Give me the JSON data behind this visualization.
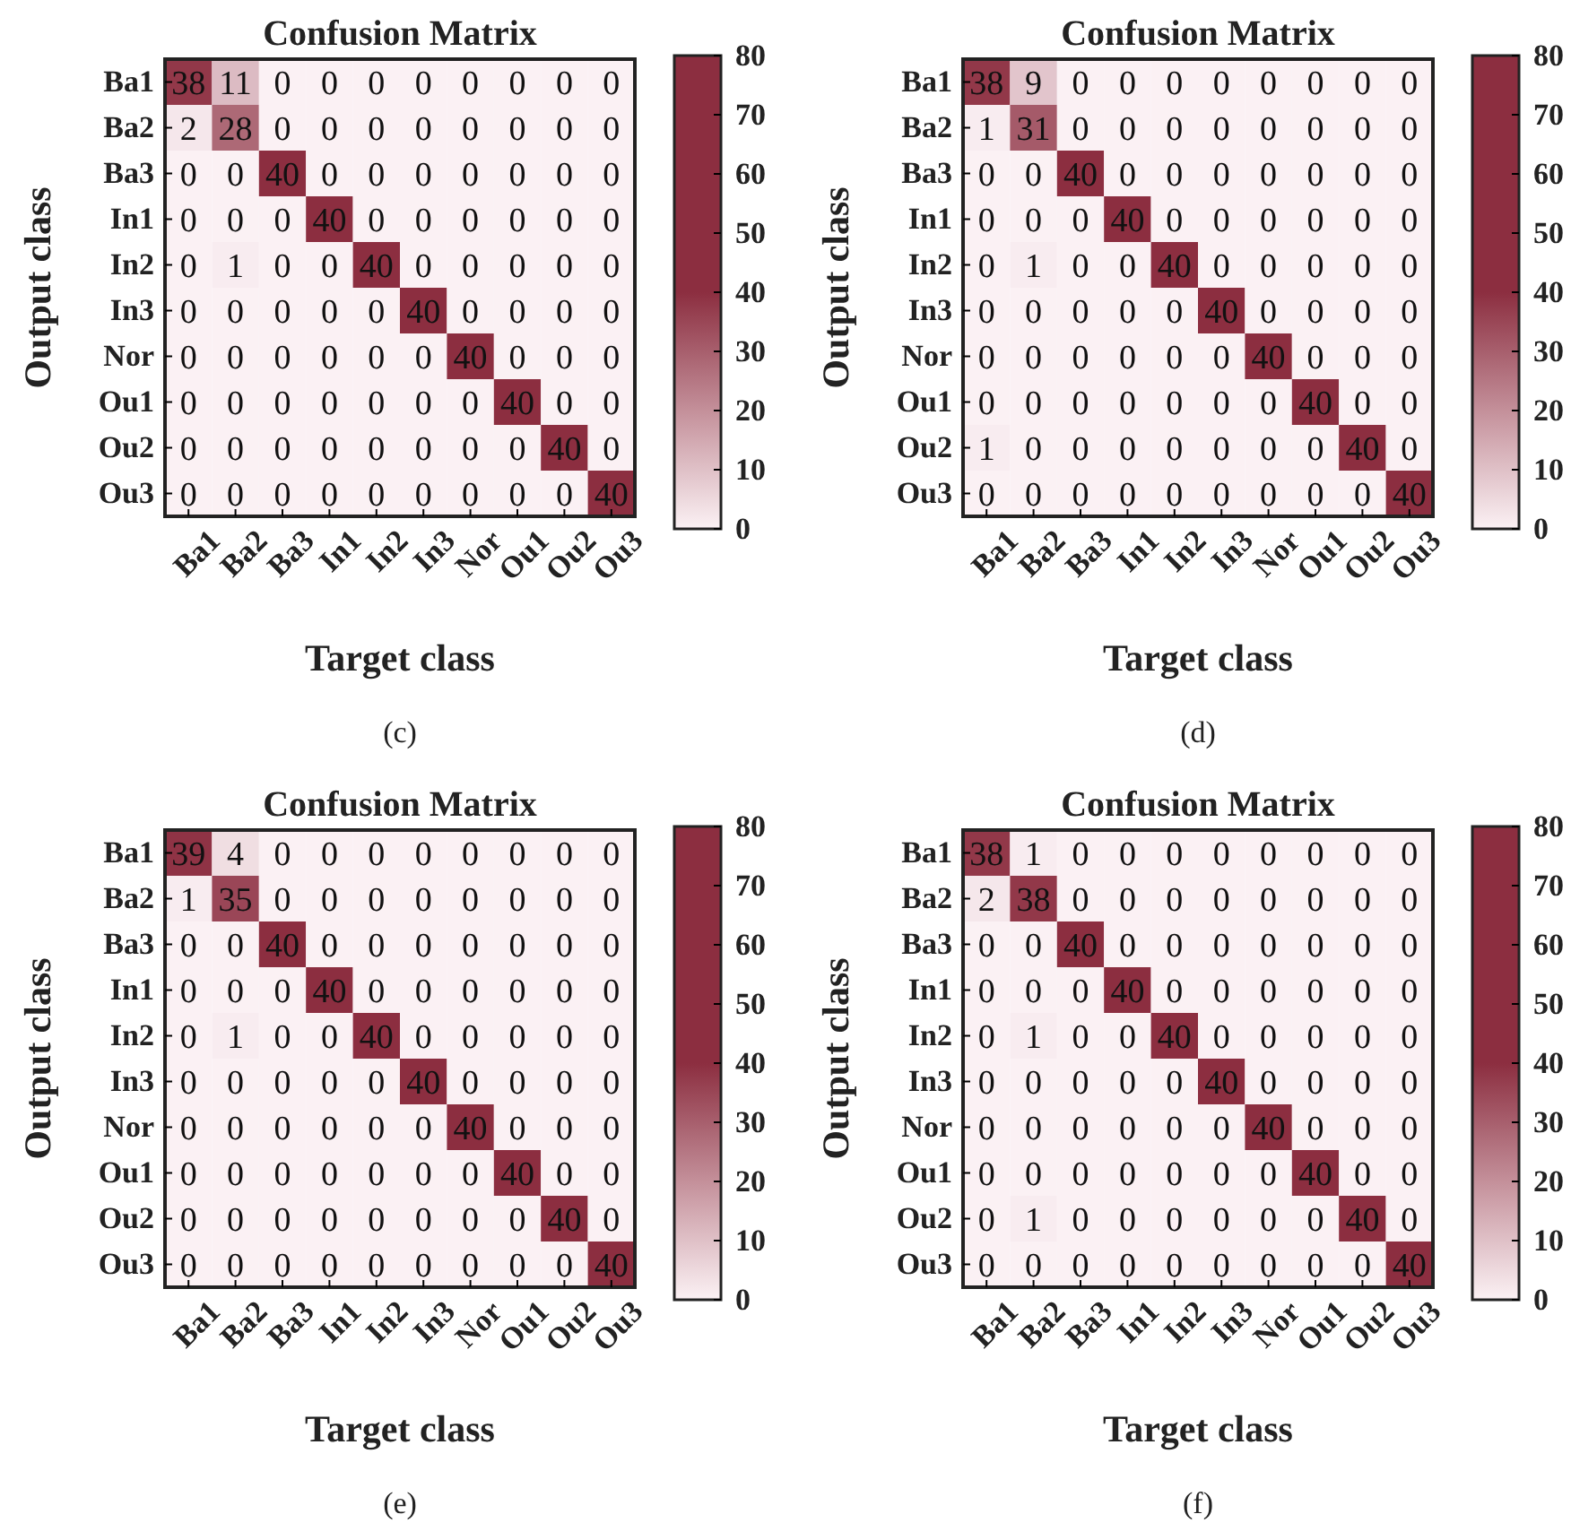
{
  "chart_data": [
    {
      "type": "heatmap",
      "title": "Confusion Matrix",
      "xlabel": "Target class",
      "ylabel": "Output class",
      "annotations": [
        "(c)"
      ],
      "categories": [
        "Ba1",
        "Ba2",
        "Ba3",
        "In1",
        "In2",
        "In3",
        "Nor",
        "Ou1",
        "Ou2",
        "Ou3"
      ],
      "y_categories": [
        "Ba1",
        "Ba2",
        "Ba3",
        "In1",
        "In2",
        "In3",
        "Nor",
        "Ou1",
        "Ou2",
        "Ou3"
      ],
      "clim": [
        0,
        80
      ],
      "cticks": [
        0,
        10,
        20,
        30,
        40,
        50,
        60,
        70,
        80
      ],
      "data_labels": true,
      "cells": [
        [
          38,
          11,
          0,
          0,
          0,
          0,
          0,
          0,
          0,
          0
        ],
        [
          2,
          28,
          0,
          0,
          0,
          0,
          0,
          0,
          0,
          0
        ],
        [
          0,
          0,
          40,
          0,
          0,
          0,
          0,
          0,
          0,
          0
        ],
        [
          0,
          0,
          0,
          40,
          0,
          0,
          0,
          0,
          0,
          0
        ],
        [
          0,
          1,
          0,
          0,
          40,
          0,
          0,
          0,
          0,
          0
        ],
        [
          0,
          0,
          0,
          0,
          0,
          40,
          0,
          0,
          0,
          0
        ],
        [
          0,
          0,
          0,
          0,
          0,
          0,
          40,
          0,
          0,
          0
        ],
        [
          0,
          0,
          0,
          0,
          0,
          0,
          0,
          40,
          0,
          0
        ],
        [
          0,
          0,
          0,
          0,
          0,
          0,
          0,
          0,
          40,
          0
        ],
        [
          0,
          0,
          0,
          0,
          0,
          0,
          0,
          0,
          0,
          40
        ]
      ]
    },
    {
      "type": "heatmap",
      "title": "Confusion Matrix",
      "xlabel": "Target class",
      "ylabel": "Output class",
      "annotations": [
        "(d)"
      ],
      "categories": [
        "Ba1",
        "Ba2",
        "Ba3",
        "In1",
        "In2",
        "In3",
        "Nor",
        "Ou1",
        "Ou2",
        "Ou3"
      ],
      "y_categories": [
        "Ba1",
        "Ba2",
        "Ba3",
        "In1",
        "In2",
        "In3",
        "Nor",
        "Ou1",
        "Ou2",
        "Ou3"
      ],
      "clim": [
        0,
        80
      ],
      "cticks": [
        0,
        10,
        20,
        30,
        40,
        50,
        60,
        70,
        80
      ],
      "data_labels": true,
      "cells": [
        [
          38,
          9,
          0,
          0,
          0,
          0,
          0,
          0,
          0,
          0
        ],
        [
          1,
          31,
          0,
          0,
          0,
          0,
          0,
          0,
          0,
          0
        ],
        [
          0,
          0,
          40,
          0,
          0,
          0,
          0,
          0,
          0,
          0
        ],
        [
          0,
          0,
          0,
          40,
          0,
          0,
          0,
          0,
          0,
          0
        ],
        [
          0,
          1,
          0,
          0,
          40,
          0,
          0,
          0,
          0,
          0
        ],
        [
          0,
          0,
          0,
          0,
          0,
          40,
          0,
          0,
          0,
          0
        ],
        [
          0,
          0,
          0,
          0,
          0,
          0,
          40,
          0,
          0,
          0
        ],
        [
          0,
          0,
          0,
          0,
          0,
          0,
          0,
          40,
          0,
          0
        ],
        [
          1,
          0,
          0,
          0,
          0,
          0,
          0,
          0,
          40,
          0
        ],
        [
          0,
          0,
          0,
          0,
          0,
          0,
          0,
          0,
          0,
          40
        ]
      ]
    },
    {
      "type": "heatmap",
      "title": "Confusion Matrix",
      "xlabel": "Target class",
      "ylabel": "Output class",
      "annotations": [
        "(e)"
      ],
      "categories": [
        "Ba1",
        "Ba2",
        "Ba3",
        "In1",
        "In2",
        "In3",
        "Nor",
        "Ou1",
        "Ou2",
        "Ou3"
      ],
      "y_categories": [
        "Ba1",
        "Ba2",
        "Ba3",
        "In1",
        "In2",
        "In3",
        "Nor",
        "Ou1",
        "Ou2",
        "Ou3"
      ],
      "clim": [
        0,
        80
      ],
      "cticks": [
        0,
        10,
        20,
        30,
        40,
        50,
        60,
        70,
        80
      ],
      "data_labels": true,
      "cells": [
        [
          39,
          4,
          0,
          0,
          0,
          0,
          0,
          0,
          0,
          0
        ],
        [
          1,
          35,
          0,
          0,
          0,
          0,
          0,
          0,
          0,
          0
        ],
        [
          0,
          0,
          40,
          0,
          0,
          0,
          0,
          0,
          0,
          0
        ],
        [
          0,
          0,
          0,
          40,
          0,
          0,
          0,
          0,
          0,
          0
        ],
        [
          0,
          1,
          0,
          0,
          40,
          0,
          0,
          0,
          0,
          0
        ],
        [
          0,
          0,
          0,
          0,
          0,
          40,
          0,
          0,
          0,
          0
        ],
        [
          0,
          0,
          0,
          0,
          0,
          0,
          40,
          0,
          0,
          0
        ],
        [
          0,
          0,
          0,
          0,
          0,
          0,
          0,
          40,
          0,
          0
        ],
        [
          0,
          0,
          0,
          0,
          0,
          0,
          0,
          0,
          40,
          0
        ],
        [
          0,
          0,
          0,
          0,
          0,
          0,
          0,
          0,
          0,
          40
        ]
      ]
    },
    {
      "type": "heatmap",
      "title": "Confusion Matrix",
      "xlabel": "Target class",
      "ylabel": "Output class",
      "annotations": [
        "(f)"
      ],
      "categories": [
        "Ba1",
        "Ba2",
        "Ba3",
        "In1",
        "In2",
        "In3",
        "Nor",
        "Ou1",
        "Ou2",
        "Ou3"
      ],
      "y_categories": [
        "Ba1",
        "Ba2",
        "Ba3",
        "In1",
        "In2",
        "In3",
        "Nor",
        "Ou1",
        "Ou2",
        "Ou3"
      ],
      "clim": [
        0,
        80
      ],
      "cticks": [
        0,
        10,
        20,
        30,
        40,
        50,
        60,
        70,
        80
      ],
      "data_labels": true,
      "cells": [
        [
          38,
          1,
          0,
          0,
          0,
          0,
          0,
          0,
          0,
          0
        ],
        [
          2,
          38,
          0,
          0,
          0,
          0,
          0,
          0,
          0,
          0
        ],
        [
          0,
          0,
          40,
          0,
          0,
          0,
          0,
          0,
          0,
          0
        ],
        [
          0,
          0,
          0,
          40,
          0,
          0,
          0,
          0,
          0,
          0
        ],
        [
          0,
          1,
          0,
          0,
          40,
          0,
          0,
          0,
          0,
          0
        ],
        [
          0,
          0,
          0,
          0,
          0,
          40,
          0,
          0,
          0,
          0
        ],
        [
          0,
          0,
          0,
          0,
          0,
          0,
          40,
          0,
          0,
          0
        ],
        [
          0,
          0,
          0,
          0,
          0,
          0,
          0,
          40,
          0,
          0
        ],
        [
          0,
          1,
          0,
          0,
          0,
          0,
          0,
          0,
          40,
          0
        ],
        [
          0,
          0,
          0,
          0,
          0,
          0,
          0,
          0,
          0,
          40
        ]
      ]
    }
  ]
}
